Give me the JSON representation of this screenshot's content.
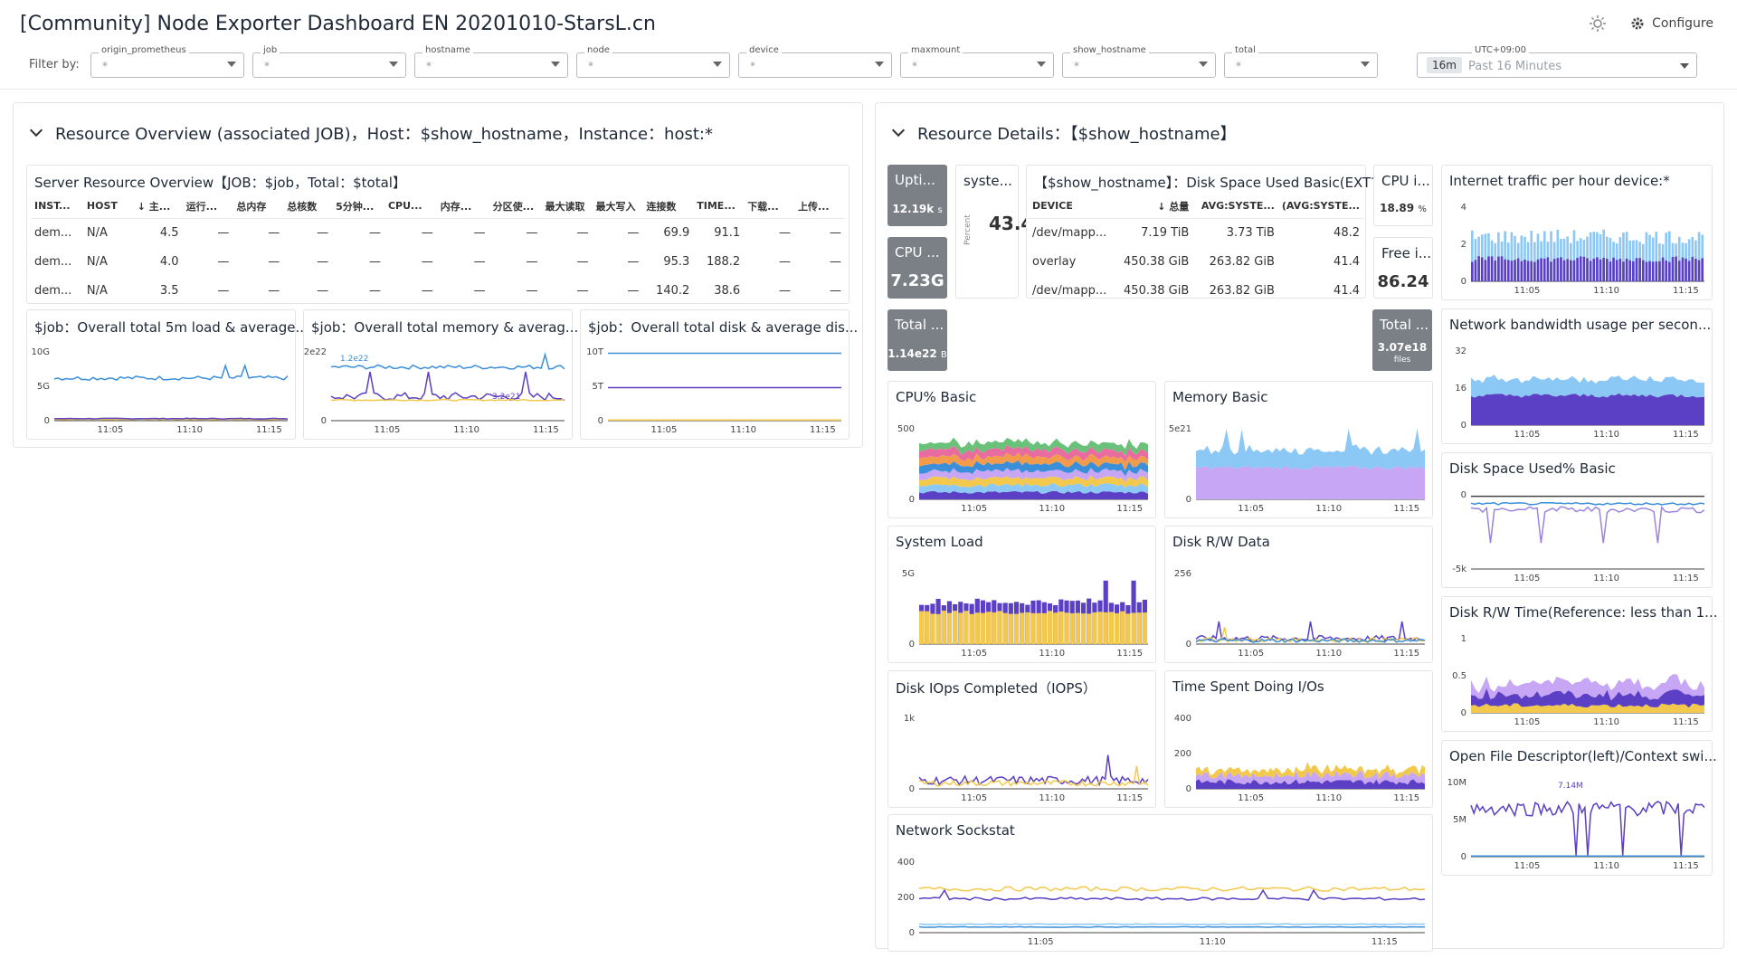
{
  "title": "[Community] Node Exporter Dashboard EN 20201010-StarsL.cn",
  "header": {
    "configure_label": "Configure"
  },
  "filter_label": "Filter by:",
  "filters": [
    {
      "label": "origin_prometheus",
      "value": "*"
    },
    {
      "label": "job",
      "value": "*"
    },
    {
      "label": "hostname",
      "value": "*"
    },
    {
      "label": "node",
      "value": "*"
    },
    {
      "label": "device",
      "value": "*"
    },
    {
      "label": "maxmount",
      "value": "*"
    },
    {
      "label": "show_hostname",
      "value": "*"
    },
    {
      "label": "total",
      "value": "*"
    }
  ],
  "time": {
    "tz": "UTC+09:00",
    "badge": "16m",
    "range": "Past 16 Minutes"
  },
  "colors": {
    "blue": "#3b8fd9",
    "purple": "#5b3fc4",
    "yellow": "#f2c94c",
    "lightblue": "#8cc8f5",
    "tile": "#7b7f86"
  },
  "left_section": {
    "title": "Resource Overview (associated JOB)，Host：$show_hostname，Instance：host:*",
    "table": {
      "title": "Server Resource Overview【JOB：$job，Total：$total】",
      "columns": [
        "INST...",
        "HOST",
        "主...",
        "运行...",
        "总内存",
        "总核数",
        "5分钟...",
        "CPU...",
        "内存...",
        "分区使...",
        "最大读取",
        "最大写入",
        "连接数",
        "TIME...",
        "下载...",
        "上传..."
      ],
      "rows": [
        [
          "dem...",
          "N/A",
          "4.5",
          "—",
          "—",
          "—",
          "—",
          "—",
          "—",
          "—",
          "—",
          "—",
          "69.9",
          "91.1",
          "—",
          "—"
        ],
        [
          "dem...",
          "N/A",
          "4.0",
          "—",
          "—",
          "—",
          "—",
          "—",
          "—",
          "—",
          "—",
          "—",
          "95.3",
          "188.2",
          "—",
          "—"
        ],
        [
          "dem...",
          "N/A",
          "3.5",
          "—",
          "—",
          "—",
          "—",
          "—",
          "—",
          "—",
          "—",
          "—",
          "140.2",
          "38.6",
          "—",
          "—"
        ]
      ]
    },
    "charts": [
      {
        "title": "$job：Overall total 5m load & average...",
        "yticks": [
          "10G",
          "5G",
          "0"
        ],
        "xticks": [
          "11:05",
          "11:10",
          "11:15"
        ]
      },
      {
        "title": "$job：Overall total memory & averag...",
        "yticks": [
          "2e22",
          "0"
        ],
        "xticks": [
          "11:05",
          "11:10",
          "11:15"
        ],
        "annotations": [
          "1.2e22",
          "3.2e21"
        ]
      },
      {
        "title": "$job：Overall total disk & average dis...",
        "yticks": [
          "10T",
          "5T",
          "0"
        ],
        "xticks": [
          "11:05",
          "11:10",
          "11:15"
        ]
      }
    ]
  },
  "right_section": {
    "title": "Resource Details：【$show_hostname】",
    "tiles": [
      {
        "title": "Upti...",
        "value": "12.19k",
        "unit": "s"
      },
      {
        "title": "CPU ...",
        "value": "7.23G",
        "unit": ""
      },
      {
        "title": "Total ...",
        "value": "1.14e22",
        "unit": "B"
      },
      {
        "title": "Total ...",
        "value": "3.07e18",
        "unit": "files"
      }
    ],
    "system_panel": {
      "title": "syste...",
      "value": "43.4",
      "axis": "Percent"
    },
    "cpu_i": {
      "title": "CPU i...",
      "value": "18.89",
      "unit": "%"
    },
    "free_i": {
      "title": "Free i...",
      "value": "86.24"
    },
    "disk_table": {
      "title": "【$show_hostname】：Disk Space Used Basic(EXT?/...",
      "columns": [
        "DEVICE",
        "总量",
        "AVG:SYSTE...",
        "(AVG:SYSTE..."
      ],
      "rows": [
        [
          "/dev/mapp...",
          "7.19 TiB",
          "3.73 TiB",
          "48.2"
        ],
        [
          "overlay",
          "450.38 GiB",
          "263.82 GiB",
          "41.4"
        ],
        [
          "/dev/mapp...",
          "450.38 GiB",
          "263.82 GiB",
          "41.4"
        ]
      ]
    },
    "charts": {
      "cpu_basic": {
        "title": "CPU% Basic",
        "yticks": [
          "500",
          "0"
        ]
      },
      "memory_basic": {
        "title": "Memory Basic",
        "yticks": [
          "5e21",
          "0"
        ]
      },
      "system_load": {
        "title": "System Load",
        "yticks": [
          "5G",
          "0"
        ]
      },
      "disk_rw_data": {
        "title": "Disk R/W Data",
        "yticks": [
          "256",
          "0"
        ]
      },
      "disk_iops": {
        "title": "Disk IOps Completed（IOPS）",
        "yticks": [
          "1k",
          "0"
        ]
      },
      "time_spent_io": {
        "title": "Time Spent Doing I/Os",
        "yticks": [
          "400",
          "200",
          "0"
        ]
      },
      "network_sockstat": {
        "title": "Network Sockstat",
        "yticks": [
          "400",
          "200",
          "0"
        ]
      },
      "internet_traffic": {
        "title": "Internet traffic per hour device:*",
        "yticks": [
          "4",
          "2",
          "0"
        ]
      },
      "network_bandwidth": {
        "title": "Network bandwidth usage per secon...",
        "yticks": [
          "32",
          "16",
          "0"
        ]
      },
      "disk_space_used": {
        "title": "Disk Space Used% Basic",
        "yticks": [
          "0",
          "-5k"
        ]
      },
      "disk_rw_time": {
        "title": "Disk R/W Time(Reference: less than 1...",
        "yticks": [
          "1",
          "0.5",
          "0"
        ]
      },
      "open_file": {
        "title": "Open File Descriptor(left)/Context swi...",
        "yticks": [
          "10M",
          "5M",
          "0"
        ],
        "annotation": "7.14M"
      }
    },
    "xticks": [
      "11:05",
      "11:10",
      "11:15"
    ]
  }
}
